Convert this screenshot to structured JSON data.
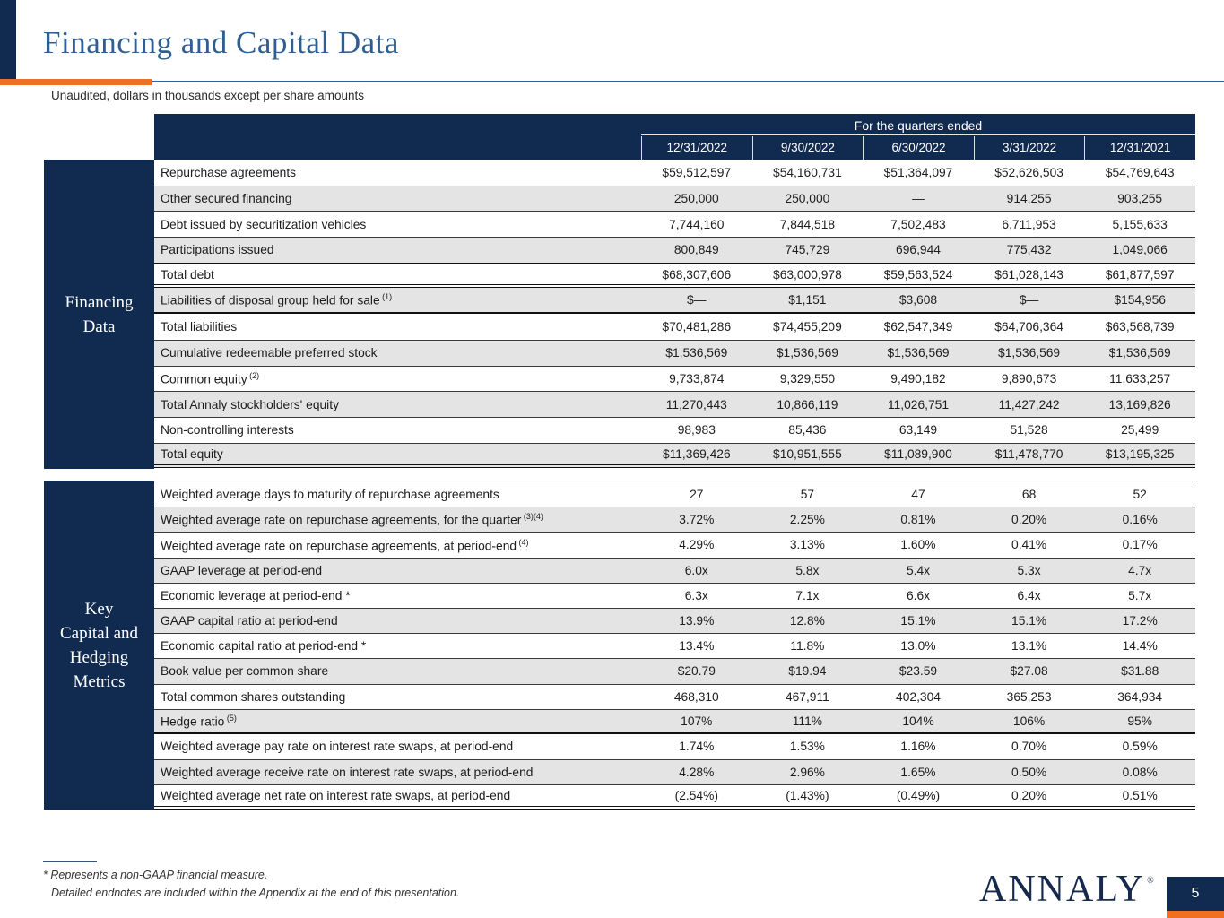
{
  "slide": {
    "title": "Financing and Capital Data",
    "subtitle": "Unaudited, dollars in thousands except per share amounts",
    "footnote_line1": "* Represents a non-GAAP financial measure.",
    "footnote_line2": "Detailed endnotes are included within the Appendix at the end of this presentation.",
    "logo_text": "ANNALY",
    "logo_mark": "®",
    "page_number": "5"
  },
  "colors": {
    "navy": "#102a50",
    "orange": "#f06f21",
    "title_blue": "#2f5e93",
    "row_gray": "#e4e4e4"
  },
  "table": {
    "header": {
      "group_label": "For the quarters ended",
      "columns": [
        "12/31/2022",
        "9/30/2022",
        "6/30/2022",
        "3/31/2022",
        "12/31/2021"
      ]
    },
    "sections": [
      {
        "sidebar_lines": [
          "Financing",
          "Data"
        ],
        "rows": [
          {
            "label": "Repurchase agreements",
            "sup": "",
            "values": [
              "$59,512,597",
              "$54,160,731",
              "$51,364,097",
              "$52,626,503",
              "$54,769,643"
            ],
            "border_top": "",
            "border_bottom": ""
          },
          {
            "label": "Other secured financing",
            "sup": "",
            "values": [
              "250,000",
              "250,000",
              "—",
              "914,255",
              "903,255"
            ],
            "border_top": "",
            "border_bottom": ""
          },
          {
            "label": "Debt issued by securitization vehicles",
            "sup": "",
            "values": [
              "7,744,160",
              "7,844,518",
              "7,502,483",
              "6,711,953",
              "5,155,633"
            ],
            "border_top": "",
            "border_bottom": ""
          },
          {
            "label": "Participations issued",
            "sup": "",
            "values": [
              "800,849",
              "745,729",
              "696,944",
              "775,432",
              "1,049,066"
            ],
            "border_top": "",
            "border_bottom": ""
          },
          {
            "label": "Total debt",
            "sup": "",
            "values": [
              "$68,307,606",
              "$63,000,978",
              "$59,563,524",
              "$61,028,143",
              "$61,877,597"
            ],
            "border_top": "thick",
            "border_bottom": "double"
          },
          {
            "label": "Liabilities of disposal group held for sale",
            "sup": "(1)",
            "values": [
              "$—",
              "$1,151",
              "$3,608",
              "$—",
              "$154,956"
            ],
            "border_top": "",
            "border_bottom": "thick"
          },
          {
            "label": "Total liabilities",
            "sup": "",
            "values": [
              "$70,481,286",
              "$74,455,209",
              "$62,547,349",
              "$64,706,364",
              "$63,568,739"
            ],
            "border_top": "",
            "border_bottom": ""
          },
          {
            "label": "Cumulative redeemable preferred stock",
            "sup": "",
            "values": [
              "$1,536,569",
              "$1,536,569",
              "$1,536,569",
              "$1,536,569",
              "$1,536,569"
            ],
            "border_top": "",
            "border_bottom": ""
          },
          {
            "label": "Common equity",
            "sup": "(2)",
            "values": [
              "9,733,874",
              "9,329,550",
              "9,490,182",
              "9,890,673",
              "11,633,257"
            ],
            "border_top": "",
            "border_bottom": ""
          },
          {
            "label": "Total Annaly stockholders' equity",
            "sup": "",
            "values": [
              "11,270,443",
              "10,866,119",
              "11,026,751",
              "11,427,242",
              "13,169,826"
            ],
            "border_top": "",
            "border_bottom": ""
          },
          {
            "label": "Non-controlling interests",
            "sup": "",
            "values": [
              "98,983",
              "85,436",
              "63,149",
              "51,528",
              "25,499"
            ],
            "border_top": "",
            "border_bottom": ""
          },
          {
            "label": "Total equity",
            "sup": "",
            "values": [
              "$11,369,426",
              "$10,951,555",
              "$11,089,900",
              "$11,478,770",
              "$13,195,325"
            ],
            "border_top": "",
            "border_bottom": "double"
          }
        ]
      },
      {
        "sidebar_lines": [
          "Key",
          "Capital and",
          "Hedging",
          "Metrics"
        ],
        "rows": [
          {
            "label": "Weighted average days to maturity of repurchase agreements",
            "sup": "",
            "values": [
              "27",
              "57",
              "47",
              "68",
              "52"
            ],
            "border_top": "",
            "border_bottom": ""
          },
          {
            "label": "Weighted average rate on repurchase agreements, for the quarter",
            "sup": "(3)(4)",
            "values": [
              "3.72%",
              "2.25%",
              "0.81%",
              "0.20%",
              "0.16%"
            ],
            "border_top": "",
            "border_bottom": ""
          },
          {
            "label": "Weighted average rate on repurchase agreements, at period-end",
            "sup": "(4)",
            "values": [
              "4.29%",
              "3.13%",
              "1.60%",
              "0.41%",
              "0.17%"
            ],
            "border_top": "",
            "border_bottom": ""
          },
          {
            "label": "GAAP leverage at period-end",
            "sup": "",
            "values": [
              "6.0x",
              "5.8x",
              "5.4x",
              "5.3x",
              "4.7x"
            ],
            "border_top": "",
            "border_bottom": ""
          },
          {
            "label": "Economic leverage at period-end *",
            "sup": "",
            "values": [
              "6.3x",
              "7.1x",
              "6.6x",
              "6.4x",
              "5.7x"
            ],
            "border_top": "",
            "border_bottom": ""
          },
          {
            "label": "GAAP capital ratio at period-end",
            "sup": "",
            "values": [
              "13.9%",
              "12.8%",
              "15.1%",
              "15.1%",
              "17.2%"
            ],
            "border_top": "",
            "border_bottom": ""
          },
          {
            "label": "Economic capital ratio at period-end *",
            "sup": "",
            "values": [
              "13.4%",
              "11.8%",
              "13.0%",
              "13.1%",
              "14.4%"
            ],
            "border_top": "",
            "border_bottom": ""
          },
          {
            "label": "Book value per common share",
            "sup": "",
            "values": [
              "$20.79",
              "$19.94",
              "$23.59",
              "$27.08",
              "$31.88"
            ],
            "border_top": "",
            "border_bottom": ""
          },
          {
            "label": "Total common shares outstanding",
            "sup": "",
            "values": [
              "468,310",
              "467,911",
              "402,304",
              "365,253",
              "364,934"
            ],
            "border_top": "",
            "border_bottom": ""
          },
          {
            "label": "Hedge ratio",
            "sup": "(5)",
            "values": [
              "107%",
              "111%",
              "104%",
              "106%",
              "95%"
            ],
            "border_top": "",
            "border_bottom": "thick"
          },
          {
            "label": "Weighted average pay rate on interest rate swaps, at period-end",
            "sup": "",
            "values": [
              "1.74%",
              "1.53%",
              "1.16%",
              "0.70%",
              "0.59%"
            ],
            "border_top": "",
            "border_bottom": ""
          },
          {
            "label": "Weighted average receive rate on interest rate swaps, at period-end",
            "sup": "",
            "values": [
              "4.28%",
              "2.96%",
              "1.65%",
              "0.50%",
              "0.08%"
            ],
            "border_top": "",
            "border_bottom": ""
          },
          {
            "label": "Weighted average net rate on interest rate swaps, at period-end",
            "sup": "",
            "values": [
              "(2.54%)",
              "(1.43%)",
              "(0.49%)",
              "0.20%",
              "0.51%"
            ],
            "border_top": "",
            "border_bottom": "double"
          }
        ]
      }
    ]
  }
}
